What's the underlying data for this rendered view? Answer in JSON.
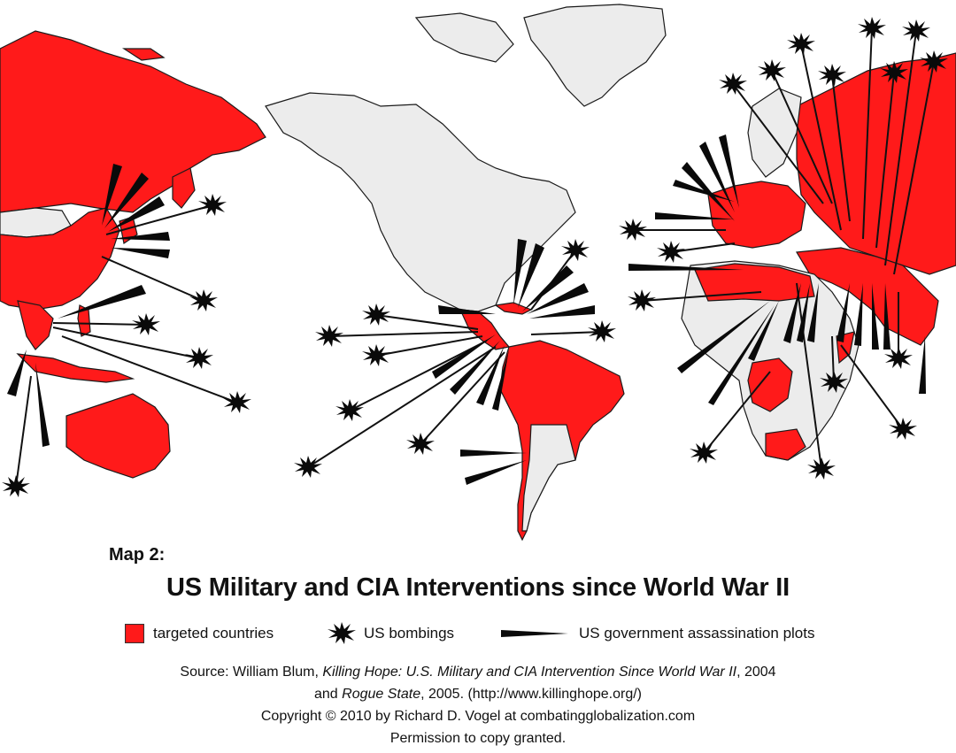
{
  "map": {
    "label": "Map 2:",
    "title": "US Military and CIA Interventions since World War II",
    "colors": {
      "targeted": "#ff1a1a",
      "land": "#ececec",
      "border": "#1a1a1a",
      "marker": "#0a0a0a"
    }
  },
  "legend": {
    "targeted_label": "targeted countries",
    "bombings_label": "US bombings",
    "assassination_label": "US government assassination plots",
    "targeted_icon": "red-square",
    "bombings_icon": "starburst-icon",
    "assassination_icon": "wedge-icon"
  },
  "source": {
    "prefix": "Source:  William Blum, ",
    "book1": "Killing Hope: U.S. Military and CIA Intervention Since World War II",
    "book1_year": ", 2004",
    "and": "and ",
    "book2": "Rogue State",
    "book2_rest": ", 2005. (http://www.killinghope.org/)",
    "copyright": "Copyright  ©  2010 by Richard D. Vogel at combatingglobalization.com",
    "permission": "Permission to copy granted."
  }
}
